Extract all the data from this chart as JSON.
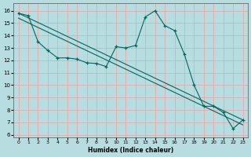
{
  "xlabel": "Humidex (Indice chaleur)",
  "background_color": "#b8dde0",
  "grid_color": "#e8a0a0",
  "line_color": "#006660",
  "xlim": [
    -0.5,
    23.5
  ],
  "ylim": [
    5.8,
    16.6
  ],
  "xticks": [
    0,
    1,
    2,
    3,
    4,
    5,
    6,
    7,
    8,
    9,
    10,
    11,
    12,
    13,
    14,
    15,
    16,
    17,
    18,
    19,
    20,
    21,
    22,
    23
  ],
  "yticks": [
    6,
    7,
    8,
    9,
    10,
    11,
    12,
    13,
    14,
    15,
    16
  ],
  "x": [
    0,
    1,
    2,
    3,
    4,
    5,
    6,
    7,
    8,
    9,
    10,
    11,
    12,
    13,
    14,
    15,
    16,
    17,
    18,
    19,
    20,
    21,
    22,
    23
  ],
  "y": [
    15.8,
    15.6,
    13.5,
    12.8,
    12.2,
    12.2,
    12.1,
    11.8,
    11.75,
    11.5,
    13.1,
    13.0,
    13.2,
    15.5,
    16.0,
    14.8,
    14.4,
    12.5,
    10.0,
    8.3,
    8.3,
    7.8,
    6.5,
    7.2
  ],
  "trend1_x": [
    0,
    23
  ],
  "trend1_y": [
    15.8,
    7.2
  ],
  "trend2_x": [
    0,
    23
  ],
  "trend2_y": [
    15.4,
    6.8
  ]
}
